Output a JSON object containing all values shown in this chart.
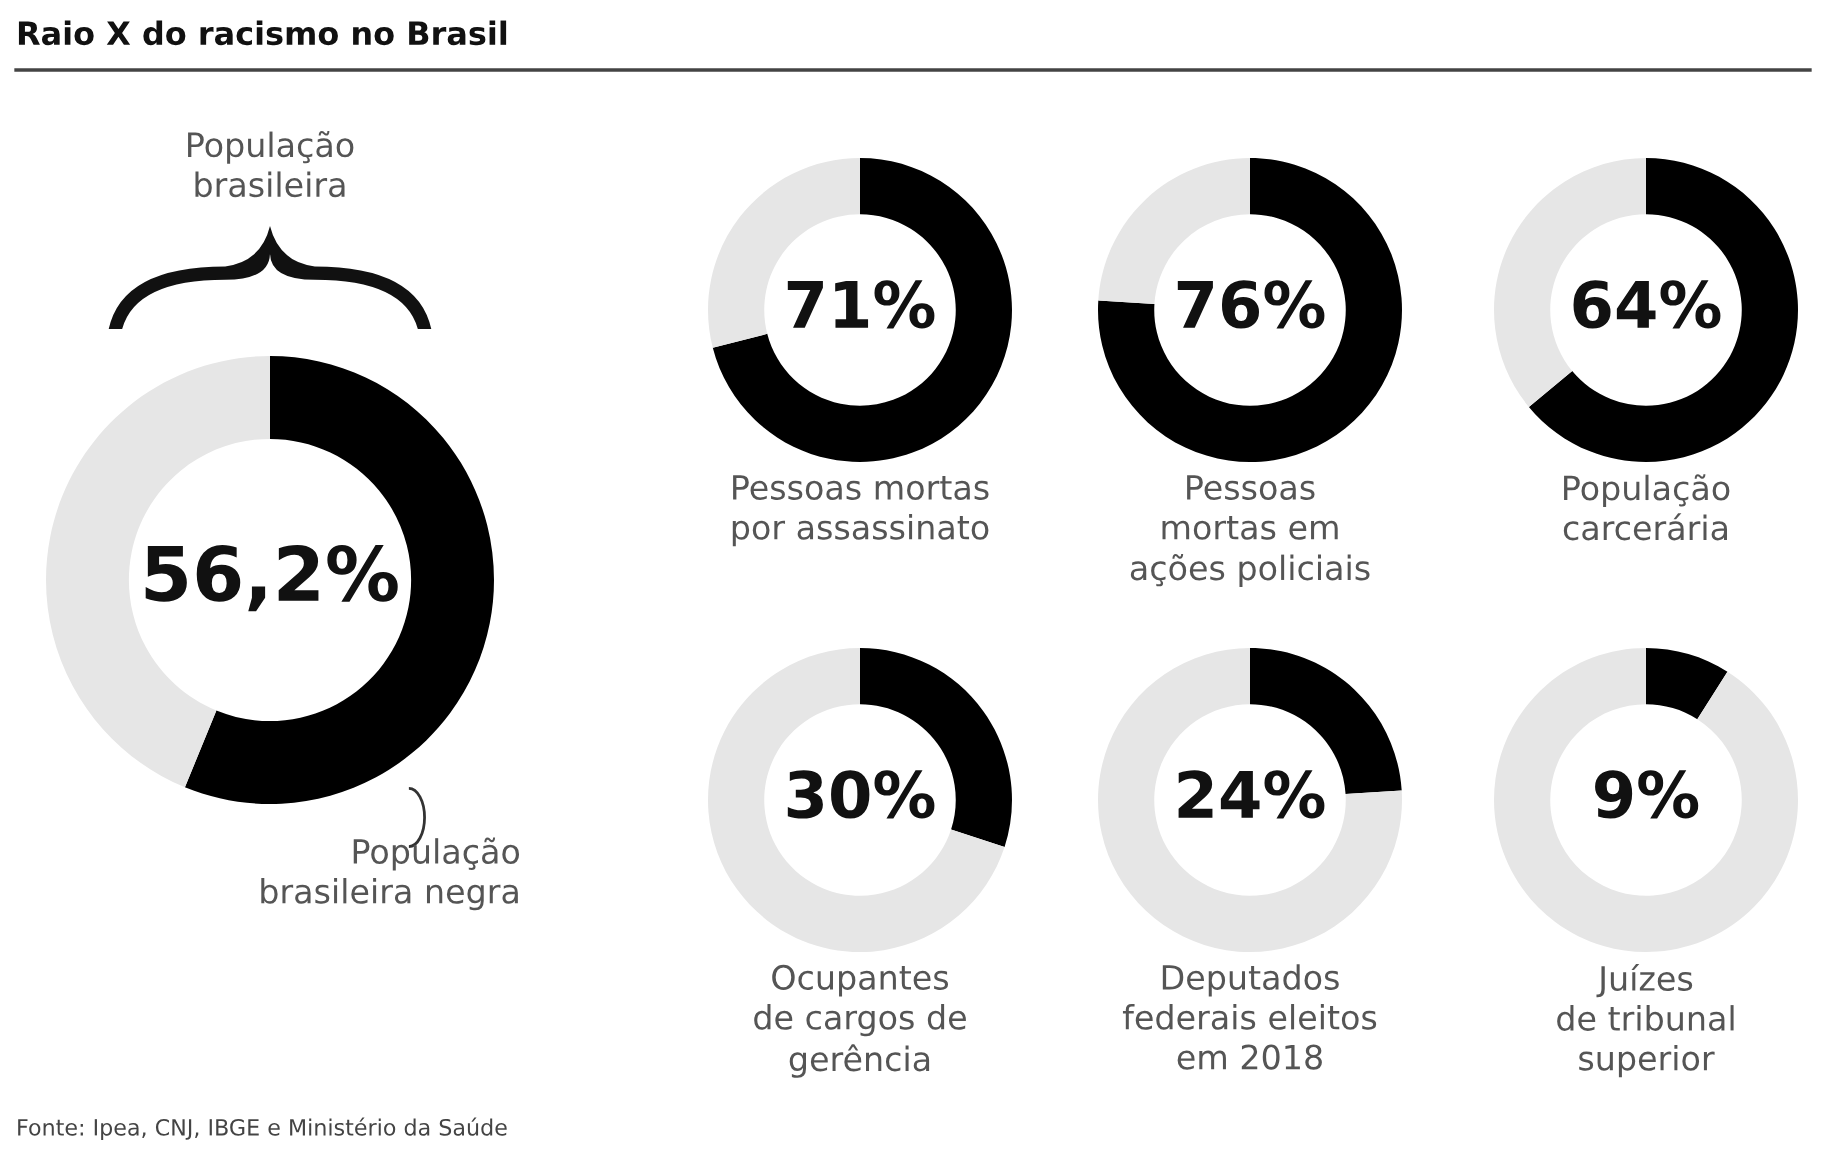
{
  "chart_data": [
    {
      "type": "donut",
      "title": "Raio X do racismo no Brasil",
      "categories": [
        "População\nbrasileira negra",
        null
      ],
      "values": [
        56.2,
        43.8
      ],
      "colors": [
        "#000000",
        "#e6e6e6"
      ],
      "value_labels": [
        "56,2%",
        null
      ],
      "annotations": [
        "População\nbrasileira",
        "Fonte: Ipea, CNJ, IBGE e Ministério da Saúde"
      ]
    },
    {
      "type": "donut",
      "title": "Pessoas mortas\npor assassinato",
      "categories": [
        null,
        null
      ],
      "values": [
        71,
        29
      ],
      "colors": [
        "#000000",
        "#e6e6e6"
      ],
      "value_labels": [
        "71%",
        null
      ]
    },
    {
      "type": "donut",
      "title": "Pessoas\nmortas em\nações policiais",
      "categories": [
        null,
        null
      ],
      "values": [
        76,
        24
      ],
      "colors": [
        "#000000",
        "#e6e6e6"
      ],
      "value_labels": [
        "76%",
        null
      ]
    },
    {
      "type": "donut",
      "title": "População\ncarcerária",
      "categories": [
        null,
        null
      ],
      "values": [
        64,
        36
      ],
      "colors": [
        "#000000",
        "#e6e6e6"
      ],
      "value_labels": [
        "64%",
        null
      ]
    },
    {
      "type": "donut",
      "title": "Ocupantes\nde cargos de\ngerência",
      "categories": [
        null,
        null
      ],
      "values": [
        30,
        70
      ],
      "colors": [
        "#000000",
        "#e6e6e6"
      ],
      "value_labels": [
        "30%",
        null
      ]
    },
    {
      "type": "donut",
      "title": "Deputados\nfederais eleitos\nem 2018",
      "categories": [
        null,
        null
      ],
      "values": [
        24,
        76
      ],
      "colors": [
        "#000000",
        "#e6e6e6"
      ],
      "value_labels": [
        "24%",
        null
      ]
    },
    {
      "type": "donut",
      "title": "Juízes\nde tribunal\nsuperior",
      "categories": [
        null,
        null
      ],
      "values": [
        9,
        91
      ],
      "colors": [
        "#000000",
        "#e6e6e6"
      ],
      "value_labels": [
        "9%",
        null
      ]
    }
  ]
}
